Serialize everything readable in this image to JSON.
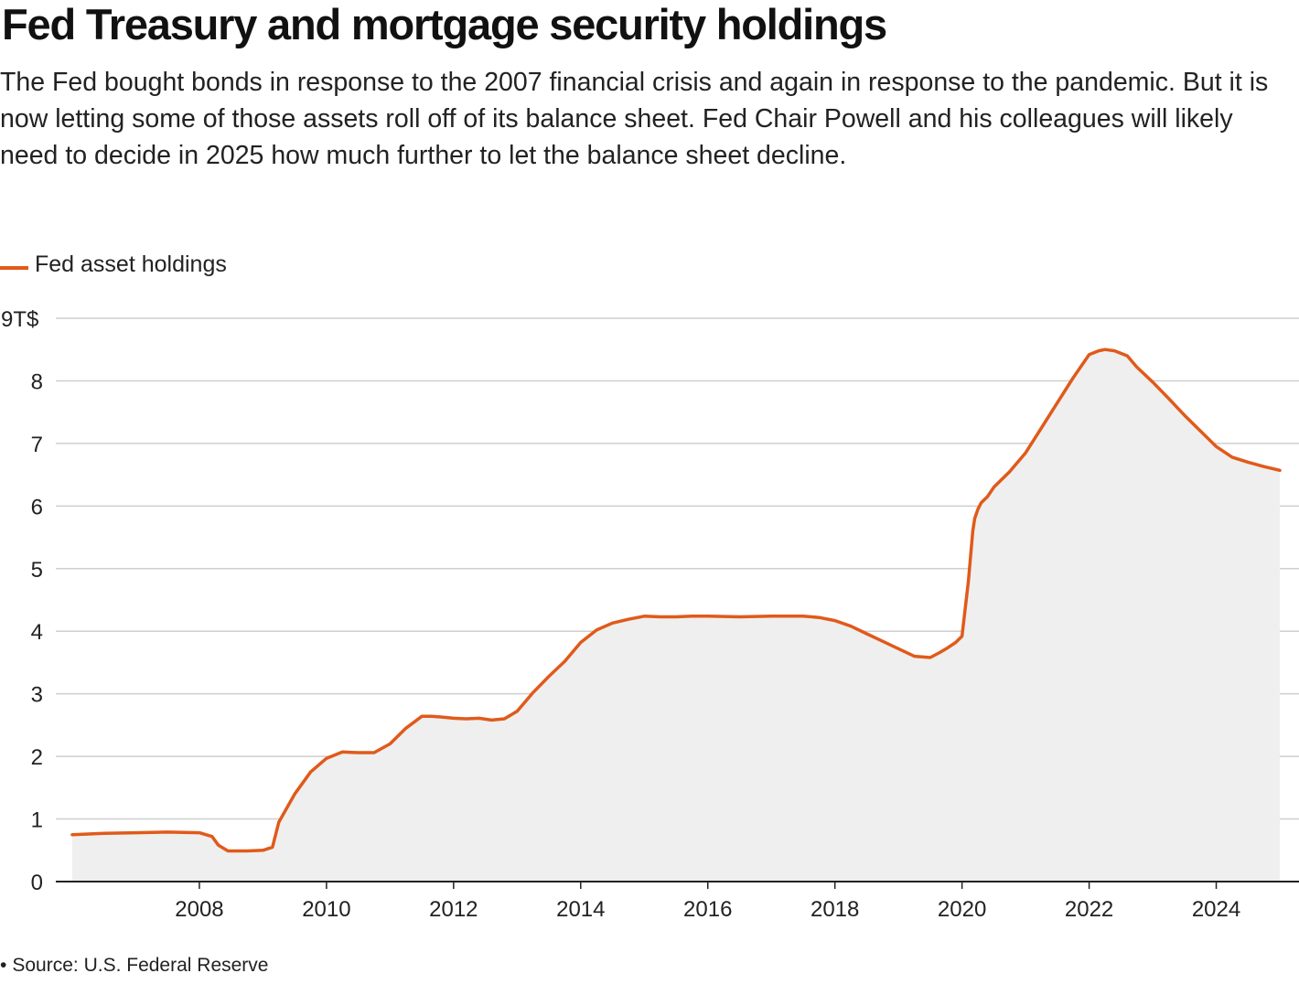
{
  "title": "Fed Treasury and mortgage security holdings",
  "subtitle": "The Fed bought bonds in response to the 2007 financial crisis and again in response to the pandemic. But it is now letting some of those assets roll off of its balance sheet. Fed Chair Powell and his colleagues will likely need to decide in 2025 how much further to let the balance sheet decline.",
  "legend": {
    "label": "Fed asset holdings",
    "color": "#e05a1a"
  },
  "source": "Source: U.S. Federal Reserve",
  "chart_data": {
    "type": "area",
    "title": "Fed Treasury and mortgage security holdings",
    "xlabel": "",
    "ylabel": "",
    "y_unit_label": "9T$",
    "xlim": [
      2006.0,
      2025.0
    ],
    "ylim": [
      0,
      9
    ],
    "grid": true,
    "legend_position": "top-left",
    "y_ticks": [
      0,
      1,
      2,
      3,
      4,
      5,
      6,
      7,
      8,
      9
    ],
    "y_tick_labels": [
      "0",
      "1",
      "2",
      "3",
      "4",
      "5",
      "6",
      "7",
      "8",
      "9T$"
    ],
    "x_ticks": [
      2008,
      2010,
      2012,
      2014,
      2016,
      2018,
      2020,
      2022,
      2024
    ],
    "x_tick_labels": [
      "2008",
      "2010",
      "2012",
      "2014",
      "2016",
      "2018",
      "2020",
      "2022",
      "2024"
    ],
    "series": [
      {
        "name": "Fed asset holdings",
        "color": "#e05a1a",
        "fill": "#efefef",
        "x": [
          2006.0,
          2006.5,
          2007.0,
          2007.5,
          2008.0,
          2008.2,
          2008.3,
          2008.45,
          2008.6,
          2008.75,
          2009.0,
          2009.15,
          2009.25,
          2009.5,
          2009.75,
          2010.0,
          2010.25,
          2010.5,
          2010.75,
          2011.0,
          2011.25,
          2011.5,
          2011.65,
          2011.8,
          2012.0,
          2012.2,
          2012.4,
          2012.6,
          2012.8,
          2013.0,
          2013.25,
          2013.5,
          2013.75,
          2014.0,
          2014.25,
          2014.5,
          2014.75,
          2015.0,
          2015.25,
          2015.5,
          2015.75,
          2016.0,
          2016.5,
          2017.0,
          2017.25,
          2017.5,
          2017.75,
          2018.0,
          2018.25,
          2018.5,
          2018.75,
          2019.0,
          2019.25,
          2019.5,
          2019.65,
          2019.75,
          2019.9,
          2020.0,
          2020.1,
          2020.17,
          2020.2,
          2020.25,
          2020.3,
          2020.4,
          2020.5,
          2020.75,
          2021.0,
          2021.25,
          2021.5,
          2021.75,
          2022.0,
          2022.15,
          2022.25,
          2022.4,
          2022.6,
          2022.75,
          2023.0,
          2023.25,
          2023.5,
          2023.75,
          2024.0,
          2024.25,
          2024.5,
          2024.75,
          2025.0
        ],
        "y": [
          0.75,
          0.77,
          0.78,
          0.79,
          0.78,
          0.72,
          0.58,
          0.49,
          0.49,
          0.49,
          0.5,
          0.55,
          0.95,
          1.4,
          1.75,
          1.97,
          2.07,
          2.06,
          2.06,
          2.2,
          2.45,
          2.64,
          2.64,
          2.63,
          2.61,
          2.6,
          2.61,
          2.58,
          2.6,
          2.72,
          3.02,
          3.28,
          3.52,
          3.82,
          4.02,
          4.13,
          4.19,
          4.24,
          4.23,
          4.23,
          4.24,
          4.24,
          4.23,
          4.24,
          4.24,
          4.24,
          4.22,
          4.17,
          4.08,
          3.96,
          3.84,
          3.72,
          3.6,
          3.58,
          3.66,
          3.72,
          3.82,
          3.92,
          4.8,
          5.6,
          5.8,
          5.95,
          6.05,
          6.15,
          6.3,
          6.55,
          6.85,
          7.25,
          7.65,
          8.05,
          8.42,
          8.48,
          8.5,
          8.48,
          8.4,
          8.22,
          7.98,
          7.72,
          7.45,
          7.2,
          6.95,
          6.78,
          6.7,
          6.63,
          6.57
        ]
      }
    ]
  }
}
